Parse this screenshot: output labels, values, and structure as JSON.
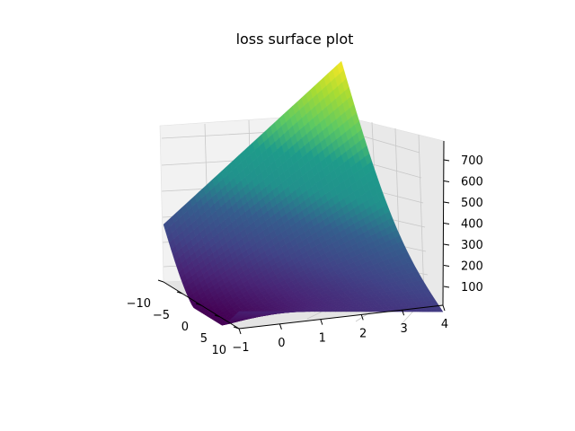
{
  "chart_data": {
    "type": "surface-3d",
    "title": "loss surface plot",
    "xlabel": "",
    "ylabel": "",
    "zlabel": "",
    "x_ticks": [
      "−10",
      "−5",
      "0",
      "5",
      "10"
    ],
    "y_ticks": [
      "−1",
      "0",
      "1",
      "2",
      "3",
      "4"
    ],
    "z_ticks": [
      "100",
      "200",
      "300",
      "400",
      "500",
      "600",
      "700"
    ],
    "xlim": [
      -10,
      10
    ],
    "ylim": [
      -1,
      4
    ],
    "zlim": [
      30,
      770
    ],
    "grid": true,
    "colormap": "viridis",
    "surface_corners": [
      {
        "x": -10,
        "y": -1,
        "z": 230
      },
      {
        "x": -10,
        "y": 4,
        "z": 770
      },
      {
        "x": 10,
        "y": -1,
        "z": 90
      },
      {
        "x": 10,
        "y": 4,
        "z": 170
      }
    ],
    "z_min_value": 5
  }
}
